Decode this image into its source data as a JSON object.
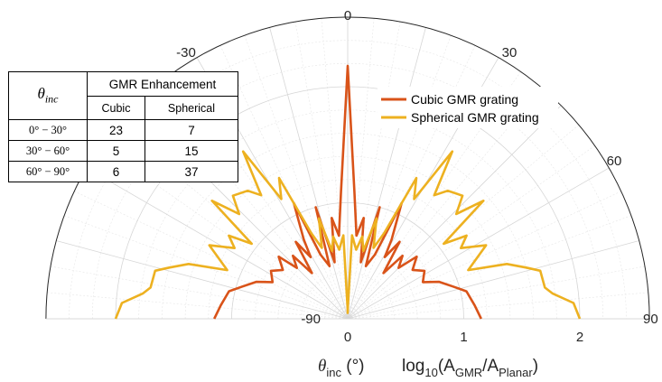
{
  "chart_data": {
    "type": "polar-line",
    "angular_ticks": [
      "-90",
      "-30",
      "0",
      "30",
      "60",
      "90"
    ],
    "radial_ticks": [
      "0",
      "1",
      "2"
    ],
    "theta_axis_label": "θ",
    "theta_axis_sub": "inc",
    "theta_axis_unit": " (°)",
    "r_axis_label_prefix": "log",
    "r_axis_label_base": "10",
    "r_axis_label_open": "(A",
    "r_axis_label_sub1": "GMR",
    "r_axis_label_mid": "/A",
    "r_axis_label_sub2": "Planar",
    "r_axis_label_close": ")",
    "theta_range": [
      -90,
      90
    ],
    "r_range": [
      0,
      2
    ],
    "legend_position": "top-right",
    "grid": true,
    "series": [
      {
        "name": "Cubic GMR grating",
        "color": "#d95319",
        "points": [
          [
            -90,
            1.15
          ],
          [
            -84,
            1.1
          ],
          [
            -77,
            1.05
          ],
          [
            -73,
            0.95
          ],
          [
            -68,
            0.85
          ],
          [
            -64,
            0.72
          ],
          [
            -58,
            0.78
          ],
          [
            -53,
            0.7
          ],
          [
            -48,
            0.8
          ],
          [
            -45,
            0.62
          ],
          [
            -41,
            0.72
          ],
          [
            -38,
            0.5
          ],
          [
            -34,
            0.8
          ],
          [
            -31,
            0.62
          ],
          [
            -29,
            0.78
          ],
          [
            -25,
            1.1
          ],
          [
            -23,
            0.6
          ],
          [
            -19,
            0.48
          ],
          [
            -16,
            1.0
          ],
          [
            -13,
            0.5
          ],
          [
            -9,
            0.88
          ],
          [
            -6,
            0.72
          ],
          [
            -3,
            1.1
          ],
          [
            0,
            2.18
          ],
          [
            3,
            1.1
          ],
          [
            6,
            0.72
          ],
          [
            9,
            0.88
          ],
          [
            13,
            0.5
          ],
          [
            16,
            1.0
          ],
          [
            19,
            0.48
          ],
          [
            23,
            0.6
          ],
          [
            25,
            1.1
          ],
          [
            29,
            0.78
          ],
          [
            31,
            0.62
          ],
          [
            34,
            0.8
          ],
          [
            38,
            0.5
          ],
          [
            41,
            0.72
          ],
          [
            45,
            0.62
          ],
          [
            48,
            0.8
          ],
          [
            53,
            0.7
          ],
          [
            58,
            0.78
          ],
          [
            64,
            0.72
          ],
          [
            68,
            0.85
          ],
          [
            73,
            0.95
          ],
          [
            77,
            1.05
          ],
          [
            84,
            1.1
          ],
          [
            90,
            1.15
          ]
        ]
      },
      {
        "name": "Spherical GMR grating",
        "color": "#edb120",
        "points": [
          [
            -90,
            2.0
          ],
          [
            -86,
            1.95
          ],
          [
            -83,
            1.78
          ],
          [
            -81,
            1.72
          ],
          [
            -76,
            1.71
          ],
          [
            -74,
            1.6
          ],
          [
            -71,
            1.45
          ],
          [
            -68,
            1.12
          ],
          [
            -62,
            1.35
          ],
          [
            -58,
            1.15
          ],
          [
            -55,
            1.25
          ],
          [
            -52,
            1.05
          ],
          [
            -49,
            1.55
          ],
          [
            -46,
            1.3
          ],
          [
            -43,
            1.45
          ],
          [
            -38,
            1.4
          ],
          [
            -35,
            1.3
          ],
          [
            -32,
            1.7
          ],
          [
            -29,
            1.18
          ],
          [
            -26,
            1.35
          ],
          [
            -23,
            0.8
          ],
          [
            -20,
            0.65
          ],
          [
            -16,
            0.9
          ],
          [
            -13,
            0.6
          ],
          [
            -10,
            0.72
          ],
          [
            -7,
            0.6
          ],
          [
            -3,
            0.72
          ],
          [
            -1,
            0.1
          ],
          [
            0,
            0.05
          ],
          [
            1,
            0.1
          ],
          [
            3,
            0.72
          ],
          [
            7,
            0.6
          ],
          [
            10,
            0.72
          ],
          [
            13,
            0.6
          ],
          [
            16,
            0.9
          ],
          [
            20,
            0.65
          ],
          [
            23,
            0.8
          ],
          [
            26,
            1.35
          ],
          [
            29,
            1.18
          ],
          [
            32,
            1.7
          ],
          [
            35,
            1.3
          ],
          [
            38,
            1.4
          ],
          [
            43,
            1.45
          ],
          [
            46,
            1.3
          ],
          [
            49,
            1.55
          ],
          [
            52,
            1.05
          ],
          [
            55,
            1.25
          ],
          [
            58,
            1.15
          ],
          [
            62,
            1.35
          ],
          [
            68,
            1.12
          ],
          [
            71,
            1.45
          ],
          [
            74,
            1.6
          ],
          [
            76,
            1.71
          ],
          [
            81,
            1.72
          ],
          [
            83,
            1.78
          ],
          [
            86,
            1.95
          ],
          [
            90,
            2.0
          ]
        ]
      }
    ]
  },
  "table": {
    "theta_symbol": "θ",
    "theta_sub": "inc",
    "group_header": "GMR Enhancement",
    "col_cubic": "Cubic",
    "col_spherical": "Spherical",
    "rows": [
      {
        "range": "0° − 30°",
        "cubic": "23",
        "spherical": "7"
      },
      {
        "range": "30° − 60°",
        "cubic": "5",
        "spherical": "15"
      },
      {
        "range": "60° − 90°",
        "cubic": "6",
        "spherical": "37"
      }
    ]
  }
}
